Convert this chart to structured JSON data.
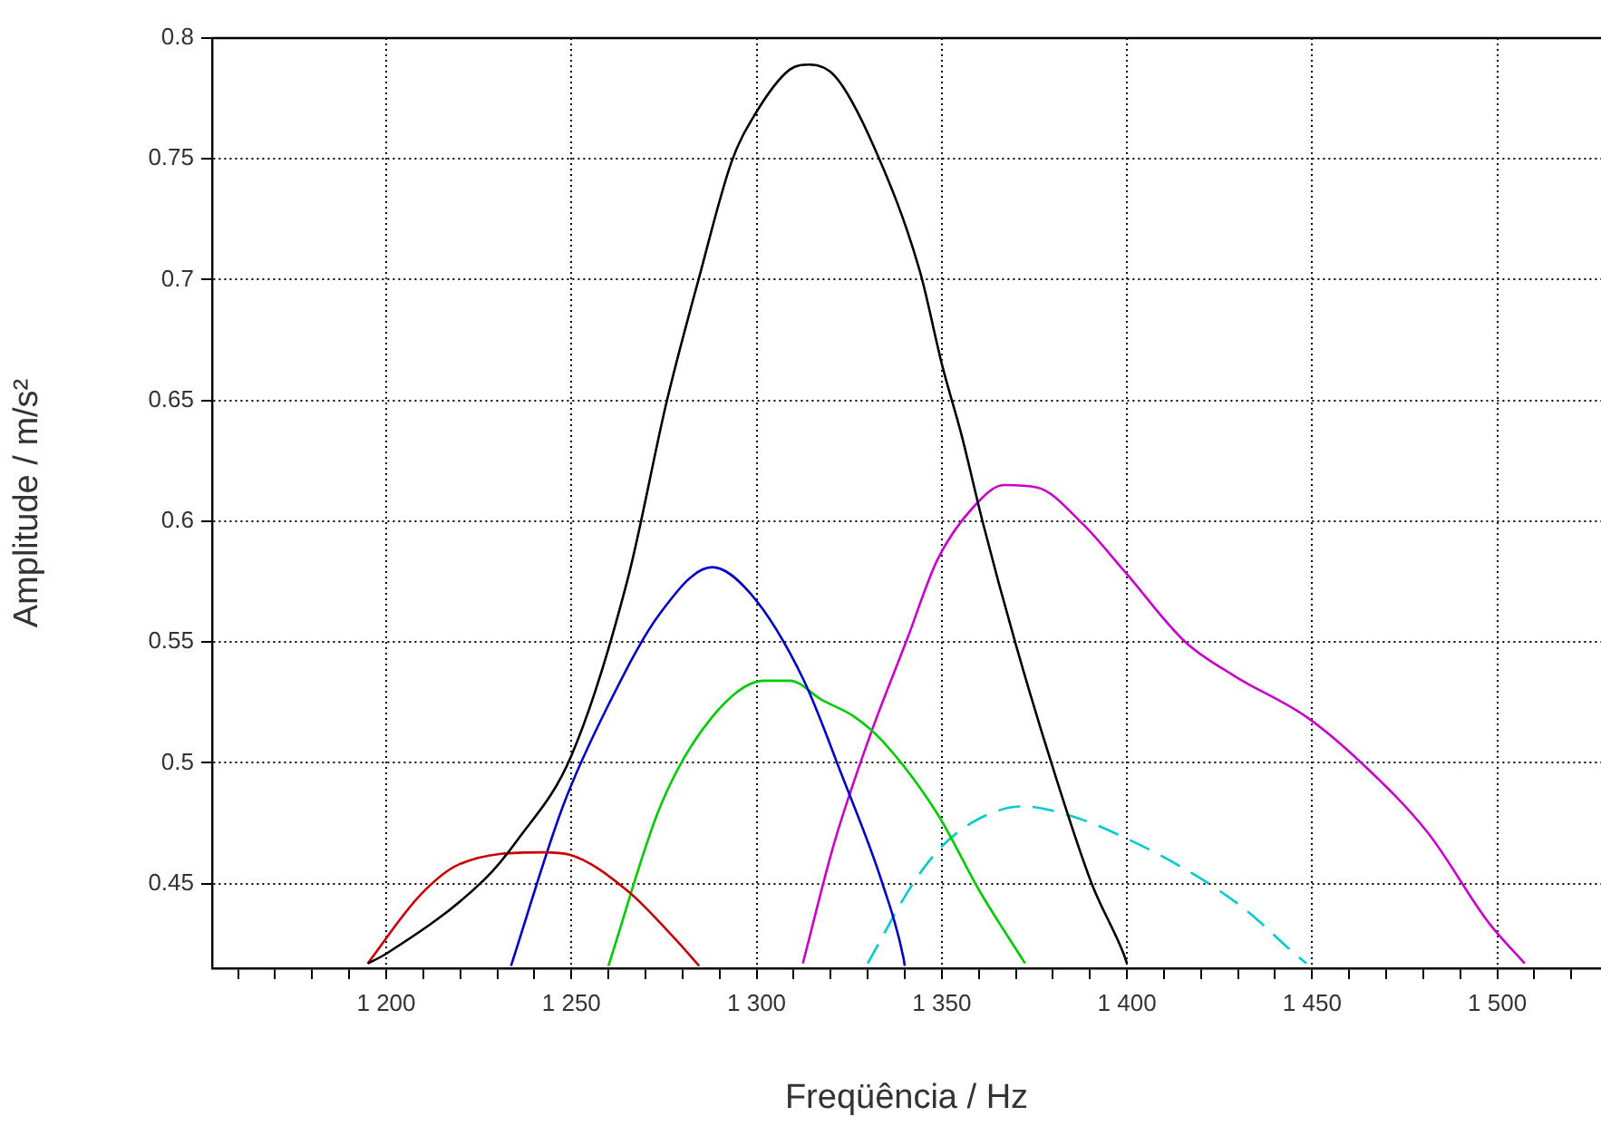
{
  "chart_data": {
    "type": "line",
    "xlabel": "Freqüência / Hz",
    "ylabel": "Amplitude / m/s²",
    "xlim": [
      1153,
      1528
    ],
    "ylim": [
      0.415,
      0.8
    ],
    "xticks": [
      {
        "value": 1160,
        "label": null
      },
      {
        "value": 1170,
        "label": null
      },
      {
        "value": 1180,
        "label": null
      },
      {
        "value": 1190,
        "label": null
      },
      {
        "value": 1200,
        "label": "1 200"
      },
      {
        "value": 1210,
        "label": null
      },
      {
        "value": 1220,
        "label": null
      },
      {
        "value": 1230,
        "label": null
      },
      {
        "value": 1240,
        "label": null
      },
      {
        "value": 1250,
        "label": "1 250"
      },
      {
        "value": 1260,
        "label": null
      },
      {
        "value": 1270,
        "label": null
      },
      {
        "value": 1280,
        "label": null
      },
      {
        "value": 1290,
        "label": null
      },
      {
        "value": 1300,
        "label": "1 300"
      },
      {
        "value": 1310,
        "label": null
      },
      {
        "value": 1320,
        "label": null
      },
      {
        "value": 1330,
        "label": null
      },
      {
        "value": 1340,
        "label": null
      },
      {
        "value": 1350,
        "label": "1 350"
      },
      {
        "value": 1360,
        "label": null
      },
      {
        "value": 1370,
        "label": null
      },
      {
        "value": 1380,
        "label": null
      },
      {
        "value": 1390,
        "label": null
      },
      {
        "value": 1400,
        "label": "1 400"
      },
      {
        "value": 1410,
        "label": null
      },
      {
        "value": 1420,
        "label": null
      },
      {
        "value": 1430,
        "label": null
      },
      {
        "value": 1440,
        "label": null
      },
      {
        "value": 1450,
        "label": "1 450"
      },
      {
        "value": 1460,
        "label": null
      },
      {
        "value": 1470,
        "label": null
      },
      {
        "value": 1480,
        "label": null
      },
      {
        "value": 1490,
        "label": null
      },
      {
        "value": 1500,
        "label": "1 500"
      },
      {
        "value": 1510,
        "label": null
      },
      {
        "value": 1520,
        "label": null
      }
    ],
    "yticks": [
      0.45,
      0.5,
      0.55,
      0.6,
      0.65,
      0.7,
      0.75,
      0.8
    ],
    "grid": true,
    "legend": false,
    "marker": "none",
    "series": [
      {
        "color": "#000000",
        "line_style": "solid",
        "x": [
          1195,
          1200,
          1226.7,
          1235.4,
          1250,
          1265.2,
          1275.8,
          1284.5,
          1293.3,
          1299.4,
          1309,
          1314.3,
          1321.3,
          1331.7,
          1344,
          1350.2,
          1355.3,
          1361,
          1370,
          1379.8,
          1390.5,
          1399.1,
          1400
        ],
        "values": [
          0.417,
          0.421,
          0.452,
          0.468,
          0.503,
          0.576,
          0.65,
          0.701,
          0.749,
          0.768,
          0.787,
          0.789,
          0.784,
          0.755,
          0.704,
          0.664,
          0.636,
          0.6,
          0.549,
          0.499,
          0.45,
          0.421,
          0.417
        ]
      },
      {
        "color": "#cc0000",
        "line_style": "solid",
        "x": [
          1195,
          1209,
          1219.7,
          1242.4,
          1249.5,
          1265.2,
          1277.5,
          1284.5
        ],
        "values": [
          0.417,
          0.445,
          0.458,
          0.463,
          0.462,
          0.447,
          0.428,
          0.416
        ]
      },
      {
        "color": "#0000cc",
        "line_style": "solid",
        "x": [
          1233.7,
          1247.7,
          1260,
          1274,
          1288,
          1298.4,
          1312.5,
          1323,
          1334,
          1339.7,
          1340
        ],
        "values": [
          0.416,
          0.482,
          0.524,
          0.562,
          0.581,
          0.57,
          0.535,
          0.495,
          0.45,
          0.419,
          0.416
        ]
      },
      {
        "color": "#00cc00",
        "line_style": "solid",
        "x": [
          1260,
          1274,
          1288,
          1302,
          1309,
          1317.7,
          1326.5,
          1334,
          1348.8,
          1360.2,
          1372.5
        ],
        "values": [
          0.416,
          0.482,
          0.519,
          0.534,
          0.534,
          0.526,
          0.519,
          0.509,
          0.479,
          0.447,
          0.417
        ]
      },
      {
        "color": "#cc00cc",
        "line_style": "solid",
        "x": [
          1312.5,
          1321,
          1330.8,
          1340.6,
          1348.8,
          1358.6,
          1366.8,
          1375.8,
          1388,
          1399.5,
          1415.8,
          1429,
          1448.5,
          1463.3,
          1481.3,
          1497.6,
          1507.4
        ],
        "values": [
          0.417,
          0.467,
          0.512,
          0.551,
          0.584,
          0.606,
          0.615,
          0.614,
          0.599,
          0.579,
          0.55,
          0.536,
          0.519,
          0.5,
          0.471,
          0.434,
          0.417
        ]
      },
      {
        "color": "#00cccc",
        "line_style": "dashed",
        "x": [
          1330,
          1342.2,
          1350.4,
          1360.2,
          1371.7,
          1383,
          1399.5,
          1419,
          1432.2,
          1445.3,
          1448.5
        ],
        "values": [
          0.417,
          0.45,
          0.466,
          0.477,
          0.482,
          0.479,
          0.469,
          0.453,
          0.439,
          0.421,
          0.417
        ]
      }
    ]
  }
}
